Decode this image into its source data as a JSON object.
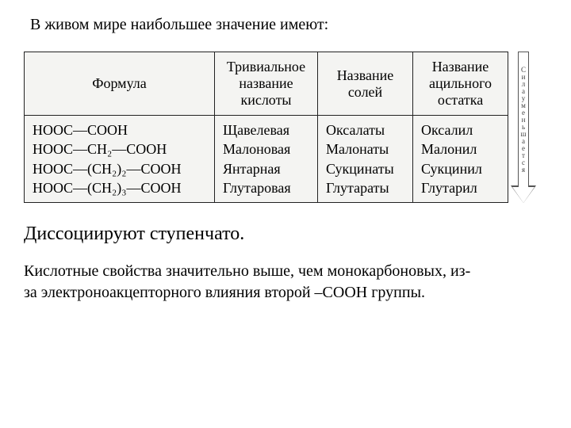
{
  "intro": "В живом мире наибольшее значение имеют:",
  "table": {
    "columns": [
      "Формула",
      "Тривиальное название кислоты",
      "Название солей",
      "Название ацильного остатка"
    ],
    "formulas": [
      "HOOC—COOH",
      "HOOC—CH₂—COOH",
      "HOOC—(CH₂)₂—COOH",
      "HOOC—(CH₂)₃—COOH"
    ],
    "trivial": [
      "Щавелевая",
      "Малоновая",
      "Янтарная",
      "Глутаровая"
    ],
    "salts": [
      "Оксалаты",
      "Малонаты",
      "Сукцинаты",
      "Глутараты"
    ],
    "acyl": [
      "Оксалил",
      "Малонил",
      "Сукцинил",
      "Глутарил"
    ],
    "border_color": "#222222",
    "bg_color": "#f4f4f2",
    "fontsize": 18
  },
  "arrow_label": "Сила уменьшается",
  "statement1": "Диссоциируют ступенчато.",
  "statement2": "Кислотные свойства значительно выше, чем монокарбоновых, из-за электроноакцепторного влияния второй –COOH группы."
}
